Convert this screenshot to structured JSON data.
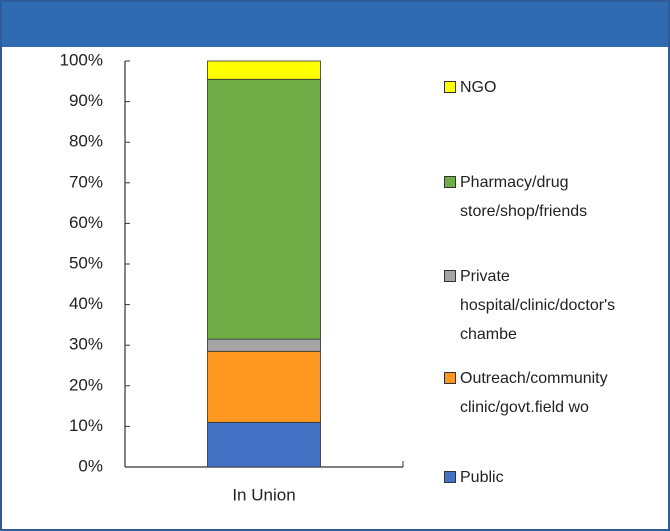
{
  "chart_data": {
    "type": "bar",
    "stacked": true,
    "categories": [
      "In Union"
    ],
    "series": [
      {
        "name": "Public",
        "color": "#4472c4",
        "values": [
          11
        ]
      },
      {
        "name": "Outreach/community clinic/govt.field wo",
        "color": "#ff9922",
        "values": [
          17.5
        ]
      },
      {
        "name": "Private hospital/clinic/doctor's chambe",
        "color": "#a5a5a5",
        "values": [
          3
        ]
      },
      {
        "name": "Pharmacy/drug store/shop/friends",
        "color": "#70ad47",
        "values": [
          64
        ]
      },
      {
        "name": "NGO",
        "color": "#ffff00",
        "values": [
          4.5
        ]
      }
    ],
    "ylim": [
      0,
      100
    ],
    "yticks": [
      {
        "value": 0,
        "label": "0%"
      },
      {
        "value": 10,
        "label": "10%"
      },
      {
        "value": 20,
        "label": "20%"
      },
      {
        "value": 30,
        "label": "30%"
      },
      {
        "value": 40,
        "label": "40%"
      },
      {
        "value": 50,
        "label": "50%"
      },
      {
        "value": 60,
        "label": "60%"
      },
      {
        "value": 70,
        "label": "70%"
      },
      {
        "value": 80,
        "label": "80%"
      },
      {
        "value": 90,
        "label": "90%"
      },
      {
        "value": 100,
        "label": "100%"
      }
    ],
    "legend": "right"
  }
}
